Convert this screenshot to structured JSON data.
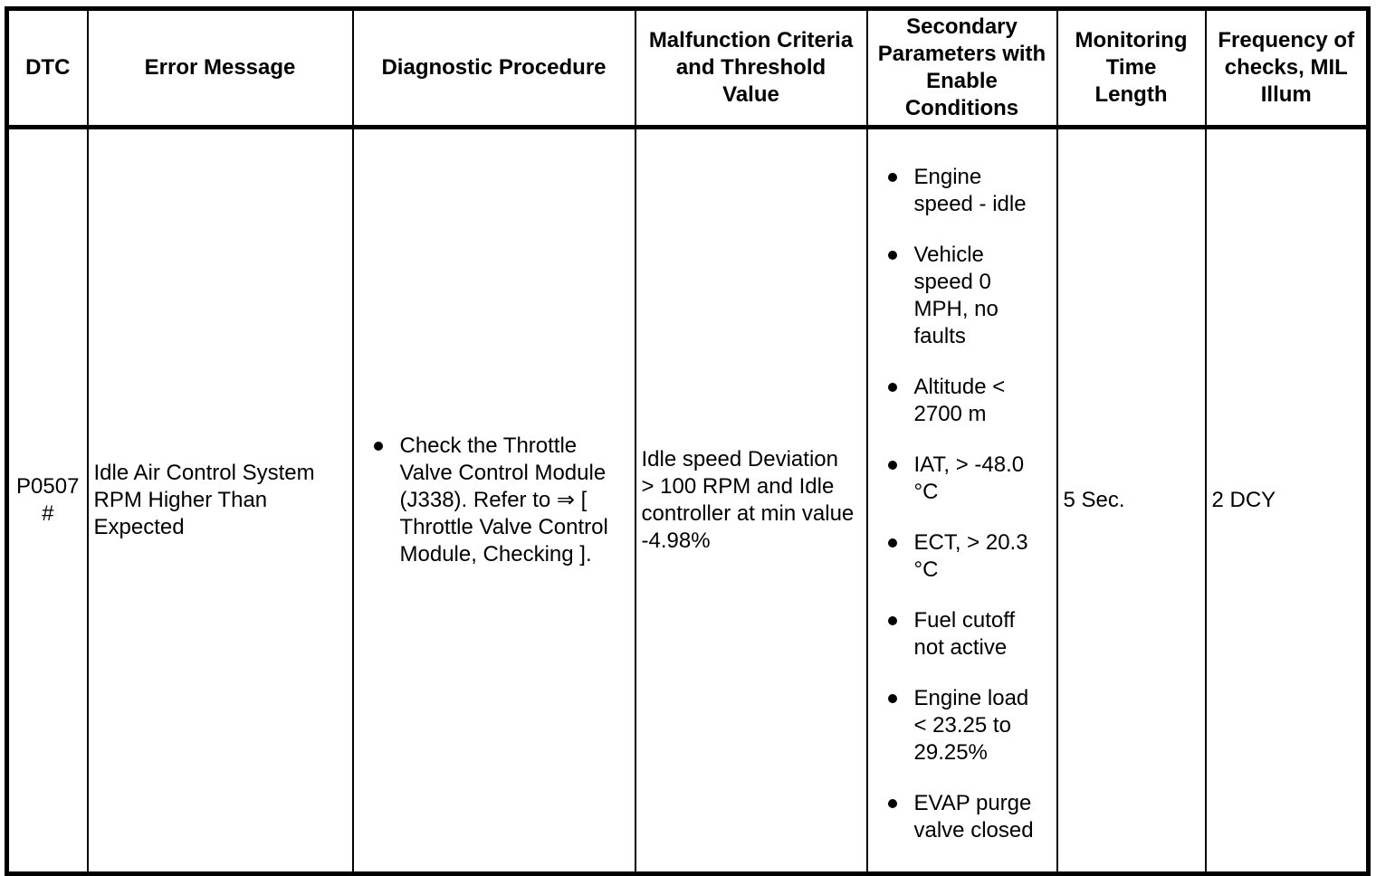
{
  "colors": {
    "foreground": "#000000",
    "background": "#ffffff"
  },
  "table": {
    "headers": [
      "DTC",
      "Error Message",
      "Diagnostic Procedure",
      "Malfunction Criteria\nand Threshold\nValue",
      "Secondary\nParameters with\nEnable\nConditions",
      "Monitoring\nTime\nLength",
      "Frequency of\nchecks, MIL\nIllum"
    ],
    "row": {
      "dtc": "P0507\n#",
      "error_message": "Idle Air Control System\nRPM Higher Than\nExpected",
      "diagnostic_procedure": [
        "Check the Throttle\nValve Control Module\n(J338). Refer to ⇒ [\nThrottle Valve Control\nModule, Checking ]."
      ],
      "malfunction_criteria": "Idle speed Deviation\n> 100 RPM and Idle\ncontroller at min value\n-4.98%",
      "secondary_parameters": [
        "Engine\nspeed - idle",
        "Vehicle\nspeed 0\nMPH, no\nfaults",
        "Altitude <\n2700 m",
        "IAT, > -48.0\n°C",
        "ECT, > 20.3\n°C",
        "Fuel cutoff\nnot active",
        "Engine load\n< 23.25 to\n29.25%",
        "EVAP purge\nvalve closed"
      ],
      "monitoring_time": "5 Sec.",
      "frequency": "2 DCY"
    }
  }
}
